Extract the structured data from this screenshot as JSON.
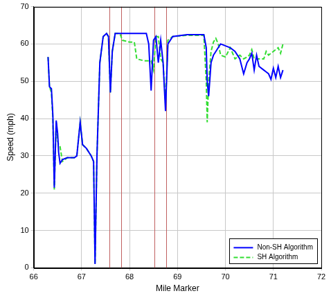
{
  "chart_data": {
    "type": "line",
    "x_label": "Mile Marker",
    "y_label": "Speed (mph)",
    "x": [
      66.3,
      66.33,
      66.37,
      66.4,
      66.43,
      66.47,
      66.5,
      66.52,
      66.55,
      66.6,
      66.7,
      66.85,
      66.9,
      66.97,
      67.02,
      67.1,
      67.2,
      67.25,
      67.28,
      67.32,
      67.38,
      67.45,
      67.52,
      67.56,
      67.6,
      67.64,
      67.7,
      67.8,
      67.85,
      68.0,
      68.1,
      68.15,
      68.3,
      68.35,
      68.4,
      68.45,
      68.5,
      68.55,
      68.6,
      68.65,
      68.7,
      68.75,
      68.8,
      68.9,
      69.2,
      69.55,
      69.6,
      69.62,
      69.65,
      69.7,
      69.75,
      69.8,
      69.85,
      69.9,
      70.0,
      70.1,
      70.2,
      70.3,
      70.38,
      70.45,
      70.5,
      70.55,
      70.6,
      70.65,
      70.7,
      70.8,
      70.85,
      70.9,
      70.95,
      71.0,
      71.05,
      71.1,
      71.15,
      71.2
    ],
    "series": [
      {
        "name": "Non-SH Algorithm",
        "color": "#0000ff",
        "line_style": "solid",
        "values": [
          56.5,
          48.5,
          48,
          41,
          21.5,
          39.5,
          36,
          31,
          28,
          29,
          29.5,
          29.5,
          30,
          39,
          33,
          32,
          30,
          28.5,
          1,
          30,
          55,
          62,
          62.8,
          62,
          47,
          58,
          62.8,
          62.8,
          62.8,
          62.8,
          62.8,
          62.8,
          62.8,
          62.8,
          60,
          47.5,
          61,
          62,
          55,
          61,
          55,
          42,
          60,
          62,
          62.5,
          62.5,
          59,
          50,
          46,
          55,
          57,
          58,
          59,
          60,
          59.5,
          59,
          58,
          56,
          52,
          55,
          56,
          57.5,
          53,
          57,
          54,
          53,
          52.5,
          52,
          50.5,
          53.5,
          51,
          54,
          51,
          53
        ]
      },
      {
        "name": "SH Algorithm",
        "color": "#33dd33",
        "line_style": "dashed",
        "values": [
          56.5,
          48.5,
          47,
          40,
          21,
          39,
          34,
          33,
          32.5,
          28.5,
          29.5,
          29.5,
          30,
          39,
          33,
          32,
          30,
          28.5,
          1,
          30,
          55,
          62,
          62.8,
          62,
          47,
          58,
          62.8,
          62.8,
          61,
          60.5,
          60.5,
          56,
          55.5,
          55.5,
          55.5,
          55.5,
          53,
          62,
          62,
          56,
          55,
          44,
          61,
          62,
          62.3,
          62.3,
          50,
          39,
          50,
          58,
          60.5,
          61.5,
          60,
          57,
          56.5,
          59,
          56,
          57,
          56,
          56.5,
          57,
          58.5,
          56,
          56,
          56,
          56,
          58,
          57,
          57.5,
          58,
          58.5,
          59,
          57.5,
          60
        ]
      }
    ],
    "vertical_lines": [
      67.58,
      67.83,
      68.52,
      68.77
    ],
    "xlim": [
      66,
      72
    ],
    "xticks": [
      66,
      67,
      68,
      69,
      70,
      71,
      72
    ],
    "ylim": [
      0,
      70
    ],
    "yticks": [
      0,
      10,
      20,
      30,
      40,
      50,
      60,
      70
    ],
    "grid": true,
    "legend": "lower right"
  }
}
